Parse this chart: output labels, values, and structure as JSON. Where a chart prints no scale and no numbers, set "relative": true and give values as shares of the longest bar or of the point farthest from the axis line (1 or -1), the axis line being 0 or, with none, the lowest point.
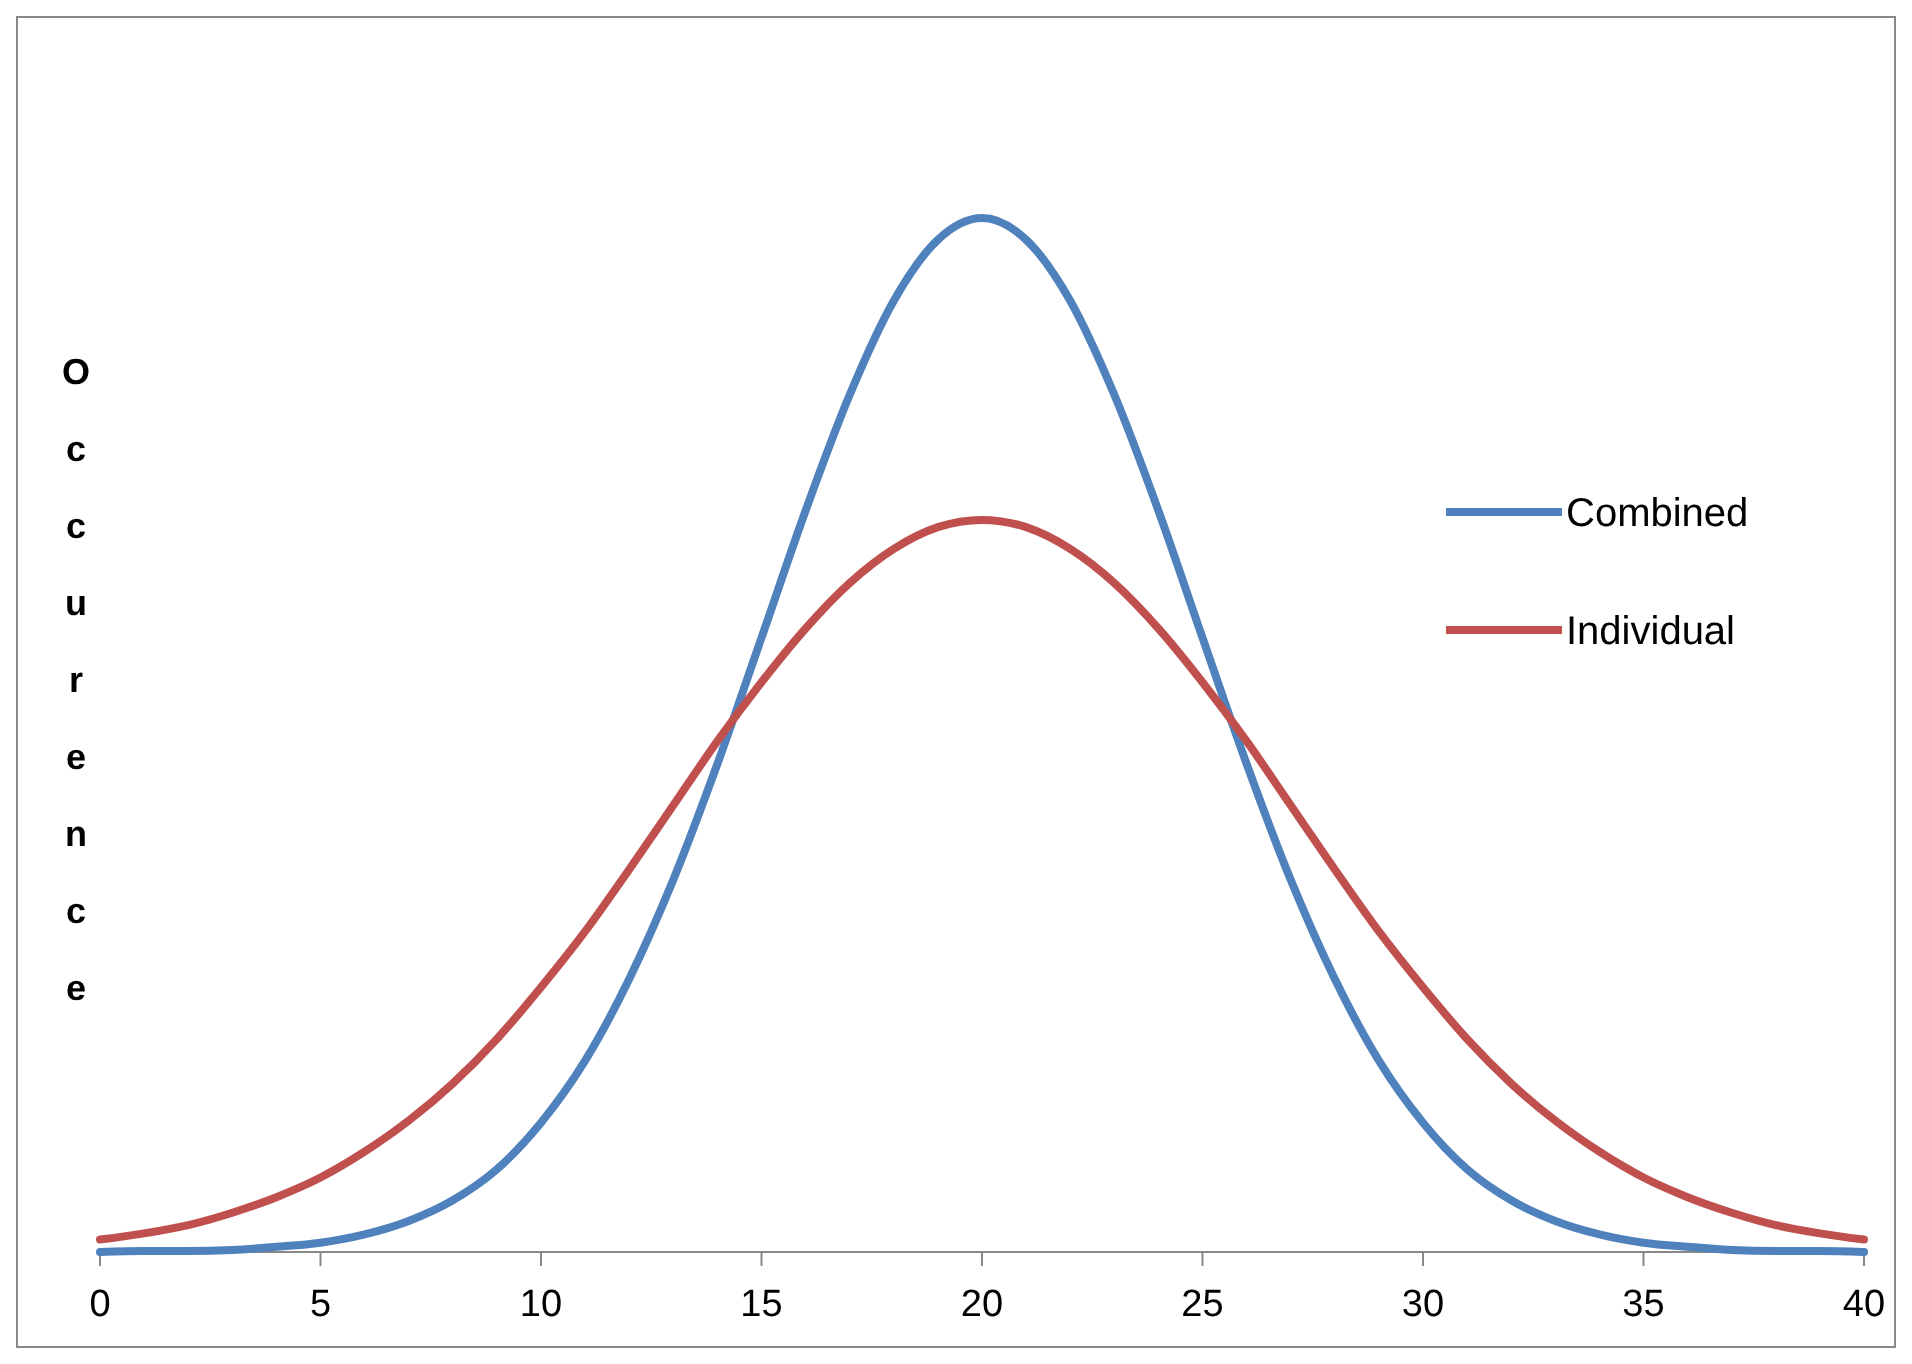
{
  "chart_data": {
    "type": "line",
    "ylabel": "Occurence",
    "relative": true,
    "x": [
      0,
      1,
      2,
      3,
      4,
      5,
      6,
      7,
      8,
      9,
      10,
      11,
      12,
      13,
      14,
      15,
      16,
      17,
      18,
      19,
      20,
      21,
      22,
      23,
      24,
      25,
      26,
      27,
      28,
      29,
      30,
      31,
      32,
      33,
      34,
      35,
      36,
      37,
      38,
      39,
      40
    ],
    "series": [
      {
        "name": "Combined",
        "color": "#4f81bd",
        "values": [
          0,
          0.001,
          0.001,
          0.002,
          0.005,
          0.009,
          0.017,
          0.03,
          0.05,
          0.08,
          0.125,
          0.185,
          0.264,
          0.36,
          0.472,
          0.594,
          0.717,
          0.829,
          0.92,
          0.979,
          1,
          0.979,
          0.92,
          0.829,
          0.717,
          0.594,
          0.472,
          0.36,
          0.264,
          0.185,
          0.125,
          0.08,
          0.05,
          0.03,
          0.017,
          0.009,
          0.005,
          0.002,
          0.001,
          0.001,
          0
        ]
      },
      {
        "name": "Individual",
        "color": "#c0504d",
        "values": [
          0.012,
          0.018,
          0.026,
          0.038,
          0.053,
          0.072,
          0.097,
          0.127,
          0.163,
          0.206,
          0.256,
          0.31,
          0.37,
          0.432,
          0.494,
          0.551,
          0.603,
          0.647,
          0.68,
          0.701,
          0.708,
          0.701,
          0.68,
          0.647,
          0.603,
          0.551,
          0.494,
          0.432,
          0.37,
          0.31,
          0.256,
          0.206,
          0.163,
          0.127,
          0.097,
          0.072,
          0.053,
          0.038,
          0.026,
          0.018,
          0.012
        ]
      }
    ],
    "xlim": [
      0,
      40
    ],
    "xticks": [
      0,
      5,
      10,
      15,
      20,
      25,
      30,
      35,
      40
    ],
    "legend": "right",
    "grid": false,
    "marker": "none",
    "line_style": "solid"
  }
}
